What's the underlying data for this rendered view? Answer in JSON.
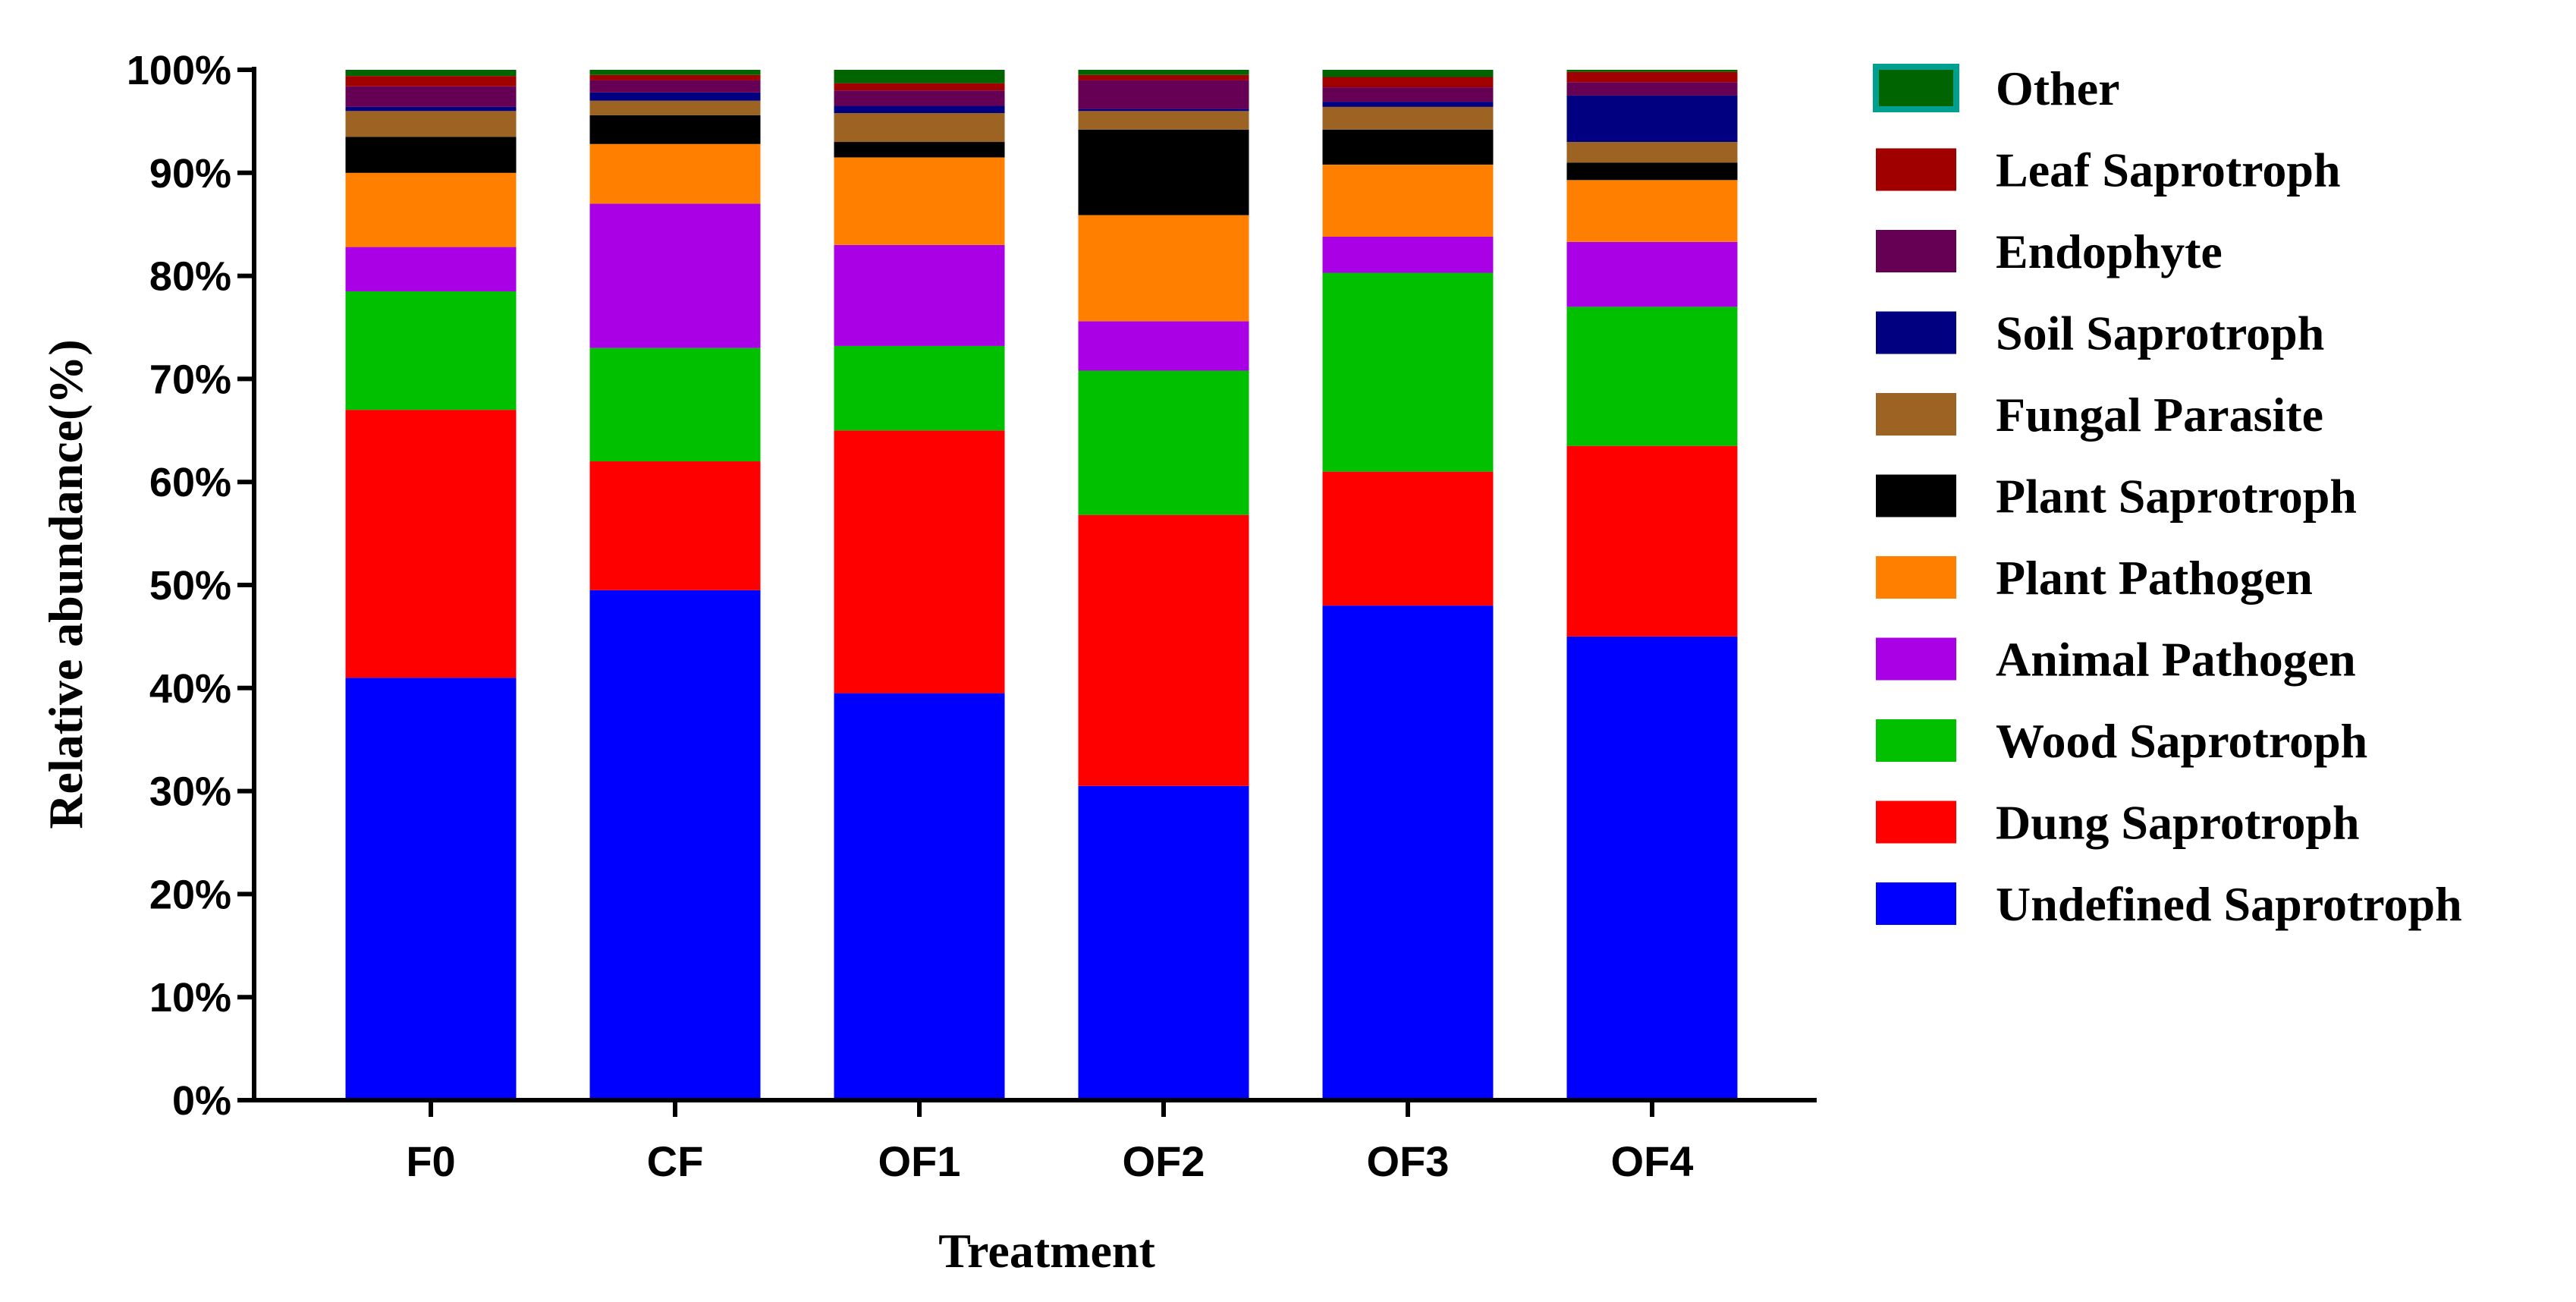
{
  "chart_data": {
    "type": "bar",
    "stacked": true,
    "title": "",
    "xlabel": "Treatment",
    "ylabel": "Relative abundance(%)",
    "ylim": [
      0,
      100
    ],
    "yticks": [
      "0%",
      "10%",
      "20%",
      "30%",
      "40%",
      "50%",
      "60%",
      "70%",
      "80%",
      "90%",
      "100%"
    ],
    "categories": [
      "F0",
      "CF",
      "OF1",
      "OF2",
      "OF3",
      "OF4"
    ],
    "legend_position": "right",
    "series": [
      {
        "name": "Undefined Saprotroph",
        "color": "#0000FF",
        "values": [
          41.0,
          49.5,
          39.5,
          30.5,
          48.0,
          45.0
        ]
      },
      {
        "name": "Dung Saprotroph",
        "color": "#FF0000",
        "values": [
          26.0,
          12.5,
          25.5,
          26.3,
          13.0,
          18.5
        ]
      },
      {
        "name": "Wood Saprotroph",
        "color": "#00C000",
        "values": [
          11.5,
          11.0,
          8.2,
          14.0,
          19.3,
          13.5
        ]
      },
      {
        "name": "Animal Pathogen",
        "color": "#AA00E6",
        "values": [
          4.3,
          14.0,
          9.8,
          4.8,
          3.5,
          6.3
        ]
      },
      {
        "name": "Plant Pathogen",
        "color": "#FF8000",
        "values": [
          7.2,
          5.8,
          8.5,
          10.3,
          7.0,
          6.0
        ]
      },
      {
        "name": "Plant Saprotroph",
        "color": "#000000",
        "values": [
          3.5,
          2.8,
          1.5,
          8.3,
          3.4,
          1.7
        ]
      },
      {
        "name": "Fungal Parasite",
        "color": "#9C6322",
        "values": [
          2.5,
          1.4,
          2.8,
          1.8,
          2.2,
          2.0
        ]
      },
      {
        "name": "Soil Saprotroph",
        "color": "#000080",
        "values": [
          0.4,
          0.8,
          0.7,
          0.2,
          0.5,
          4.5
        ]
      },
      {
        "name": "Endophyte",
        "color": "#660055",
        "values": [
          2.0,
          1.2,
          1.5,
          2.8,
          1.4,
          1.3
        ]
      },
      {
        "name": "Leaf Saprotroph",
        "color": "#A00000",
        "values": [
          1.0,
          0.5,
          0.7,
          0.5,
          1.0,
          1.0
        ]
      },
      {
        "name": "Other",
        "color": "#006400",
        "stroke": "#00A090",
        "values": [
          0.6,
          0.5,
          1.3,
          0.5,
          0.7,
          0.2
        ]
      }
    ]
  }
}
